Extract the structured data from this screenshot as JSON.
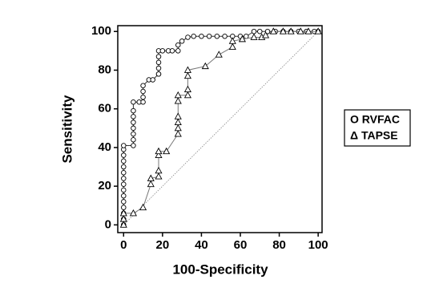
{
  "chart_data": {
    "type": "scatter",
    "xlabel": "100-Specificity",
    "ylabel": "Sensitivity",
    "xlim": [
      -3,
      102
    ],
    "ylim": [
      -4,
      103
    ],
    "xticks": [
      0,
      20,
      40,
      60,
      80,
      100
    ],
    "yticks": [
      0,
      20,
      40,
      60,
      80,
      100
    ],
    "series": [
      {
        "name": "O RVFAC",
        "marker": "circle",
        "color": "#333333",
        "x": [
          0,
          0,
          0,
          0,
          0,
          0,
          0,
          0,
          0,
          0,
          0,
          0,
          0,
          0,
          0,
          5,
          5,
          5,
          5,
          5,
          5,
          5,
          5,
          8,
          10,
          10,
          10,
          10,
          13,
          15,
          18,
          18,
          18,
          18,
          18,
          18,
          20,
          23,
          25,
          28,
          28,
          30,
          33,
          36,
          40,
          44,
          48,
          52,
          56,
          60,
          63,
          67,
          70,
          74,
          78,
          82,
          86,
          90,
          94,
          98,
          100
        ],
        "values": [
          0,
          3,
          6,
          9,
          12,
          15,
          18,
          21,
          24,
          27,
          30,
          33,
          36,
          39,
          41,
          41,
          44,
          47,
          50,
          53,
          56,
          59,
          63.5,
          63.5,
          63.5,
          66,
          69,
          72,
          75,
          75,
          78,
          78,
          81,
          84,
          87,
          90,
          90,
          90,
          90,
          90,
          93,
          95,
          97,
          97.5,
          97.5,
          97.5,
          97.5,
          97.5,
          97.5,
          97.5,
          97.5,
          100,
          100,
          100,
          100,
          100,
          100,
          100,
          100,
          100,
          100
        ]
      },
      {
        "name": "Δ TAPSE",
        "marker": "triangle",
        "color": "#777777",
        "x": [
          0,
          0,
          0,
          5,
          10,
          14,
          14,
          18,
          18,
          18,
          18,
          22,
          28,
          28,
          28,
          28,
          28,
          28,
          33,
          33,
          33,
          33,
          42,
          49,
          56,
          56,
          61,
          67,
          71,
          73,
          77,
          82,
          86,
          91,
          95,
          100
        ],
        "values": [
          0,
          3,
          6,
          6,
          9,
          21,
          24,
          25,
          28,
          36,
          38,
          38,
          47,
          50,
          53,
          56,
          64,
          67,
          67,
          70,
          77,
          80,
          82,
          88,
          92,
          95,
          96,
          97,
          97,
          98,
          100,
          100,
          100,
          100,
          100,
          100
        ]
      }
    ]
  }
}
